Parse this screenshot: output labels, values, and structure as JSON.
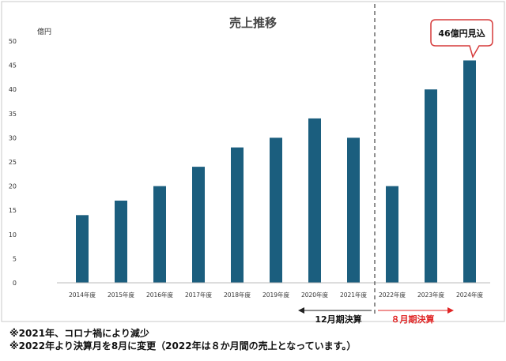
{
  "chart_data": {
    "type": "bar",
    "title": "売上推移",
    "ylabel": "億円",
    "xlabel": "",
    "categories": [
      "2014年度",
      "2015年度",
      "2016年度",
      "2017年度",
      "2018年度",
      "2019年度",
      "2020年度",
      "2021年度",
      "2022年度",
      "2023年度",
      "2024年度"
    ],
    "values": [
      14,
      17,
      20,
      24,
      28,
      30,
      34,
      30,
      20,
      40,
      46
    ],
    "ylim": [
      0,
      50
    ],
    "yticks": [
      "0",
      "5",
      "10",
      "15",
      "20",
      "25",
      "30",
      "35",
      "40",
      "45",
      "50"
    ],
    "grid": false,
    "legend": "none",
    "bar_color": "#1b5e7e",
    "callout": {
      "text": "46億円見込",
      "category": "2024年度",
      "border_color": "#d63a3a"
    },
    "period_labels": [
      {
        "text": "12月期決算",
        "color": "#111111"
      },
      {
        "text": "８月期決算",
        "color": "#e02424"
      }
    ]
  },
  "notes": [
    "※2021年、コロナ禍により減少",
    "※2022年より決算月を8月に変更（2022年は８か月間の売上となっています。）"
  ]
}
